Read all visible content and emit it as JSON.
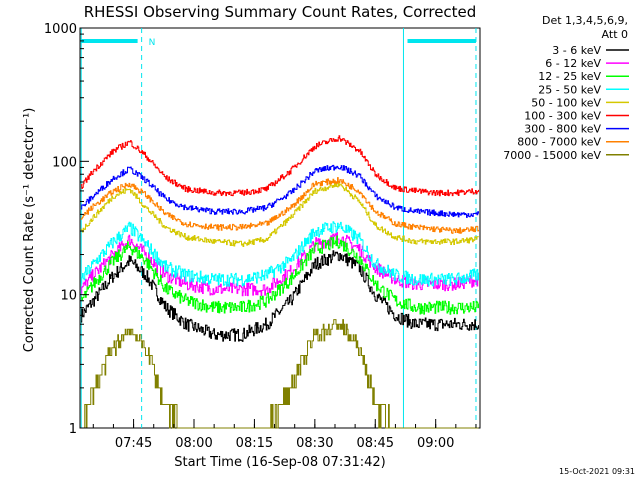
{
  "chart_data": {
    "type": "line",
    "title": "RHESSI Observing Summary Count Rates, Corrected",
    "xlabel": "Start Time (16-Sep-08 07:31:42)",
    "ylabel": "Corrected Count Rate (s⁻¹ detector⁻¹)",
    "y_scale": "log",
    "ylim": [
      1,
      1000
    ],
    "xlim": [
      "07:31:42",
      "09:11:00"
    ],
    "x_ticks": [
      "07:45",
      "08:00",
      "08:15",
      "08:30",
      "08:45",
      "09:00"
    ],
    "y_ticks": [
      "1",
      "10",
      "100",
      "1000"
    ],
    "legend_title": [
      "Det 1,3,4,5,6,9,",
      "Att 0"
    ],
    "legend_position": "top-right, outside plot",
    "footer": "15-Oct-2021 09:31",
    "flag_bars": [
      {
        "start": "07:32",
        "end": "07:46",
        "label": "N",
        "color": "#00e5ee"
      },
      {
        "start": "08:53",
        "end": "09:10",
        "label": "",
        "color": "#00e5ee"
      }
    ],
    "vertical_markers": [
      {
        "time": "07:32",
        "style": "solid",
        "color": "#00e5ee"
      },
      {
        "time": "07:47",
        "style": "dashed",
        "color": "#00e5ee"
      },
      {
        "time": "08:52",
        "style": "solid",
        "color": "#00e5ee"
      },
      {
        "time": "09:10",
        "style": "dashed",
        "color": "#00e5ee"
      }
    ],
    "x": [
      "07:32",
      "07:35",
      "07:40",
      "07:44",
      "07:48",
      "07:53",
      "07:58",
      "08:05",
      "08:12",
      "08:18",
      "08:24",
      "08:30",
      "08:36",
      "08:41",
      "08:45",
      "08:50",
      "08:55",
      "09:00",
      "09:05",
      "09:10"
    ],
    "series": [
      {
        "name": "3 - 6 keV",
        "color": "#000000",
        "values": [
          7,
          9,
          14,
          18,
          14,
          8,
          6,
          5,
          5,
          6,
          9,
          17,
          20,
          16,
          10,
          7,
          6,
          6,
          6,
          6
        ]
      },
      {
        "name": "6 - 12 keV",
        "color": "#ff00ff",
        "values": [
          11,
          14,
          20,
          26,
          20,
          14,
          12,
          11,
          11,
          11,
          15,
          24,
          27,
          22,
          16,
          13,
          12,
          12,
          12,
          13
        ]
      },
      {
        "name": "12 - 25 keV",
        "color": "#00ff00",
        "values": [
          9,
          12,
          18,
          23,
          18,
          11,
          9,
          8,
          8,
          9,
          13,
          22,
          25,
          19,
          12,
          9,
          8,
          8,
          8,
          8
        ]
      },
      {
        "name": "25 - 50 keV",
        "color": "#00ffff",
        "values": [
          13,
          17,
          25,
          32,
          24,
          16,
          14,
          13,
          13,
          14,
          18,
          30,
          33,
          26,
          17,
          14,
          13,
          13,
          13,
          14
        ]
      },
      {
        "name": "50 - 100 keV",
        "color": "#d4c800",
        "values": [
          30,
          38,
          55,
          62,
          45,
          32,
          27,
          25,
          24,
          26,
          38,
          60,
          68,
          50,
          33,
          27,
          25,
          25,
          25,
          26
        ]
      },
      {
        "name": "100 - 300 keV",
        "color": "#ff0000",
        "values": [
          65,
          85,
          120,
          140,
          110,
          75,
          62,
          58,
          58,
          62,
          85,
          130,
          150,
          120,
          80,
          63,
          60,
          58,
          58,
          60
        ]
      },
      {
        "name": "300 - 800 keV",
        "color": "#0000ff",
        "values": [
          45,
          55,
          75,
          88,
          72,
          52,
          45,
          42,
          42,
          45,
          58,
          85,
          92,
          78,
          55,
          45,
          42,
          41,
          40,
          40
        ]
      },
      {
        "name": "800 - 7000 keV",
        "color": "#ff8000",
        "values": [
          38,
          46,
          60,
          68,
          56,
          40,
          34,
          32,
          32,
          34,
          45,
          68,
          72,
          60,
          42,
          34,
          32,
          31,
          30,
          31
        ]
      },
      {
        "name": "7000 - 15000 keV",
        "color": "#808000",
        "values": [
          1,
          2,
          4,
          5.5,
          4,
          1.5,
          1,
          1,
          1,
          1,
          2,
          5,
          6,
          4,
          1.5,
          1,
          1,
          1,
          1,
          1
        ]
      }
    ]
  }
}
